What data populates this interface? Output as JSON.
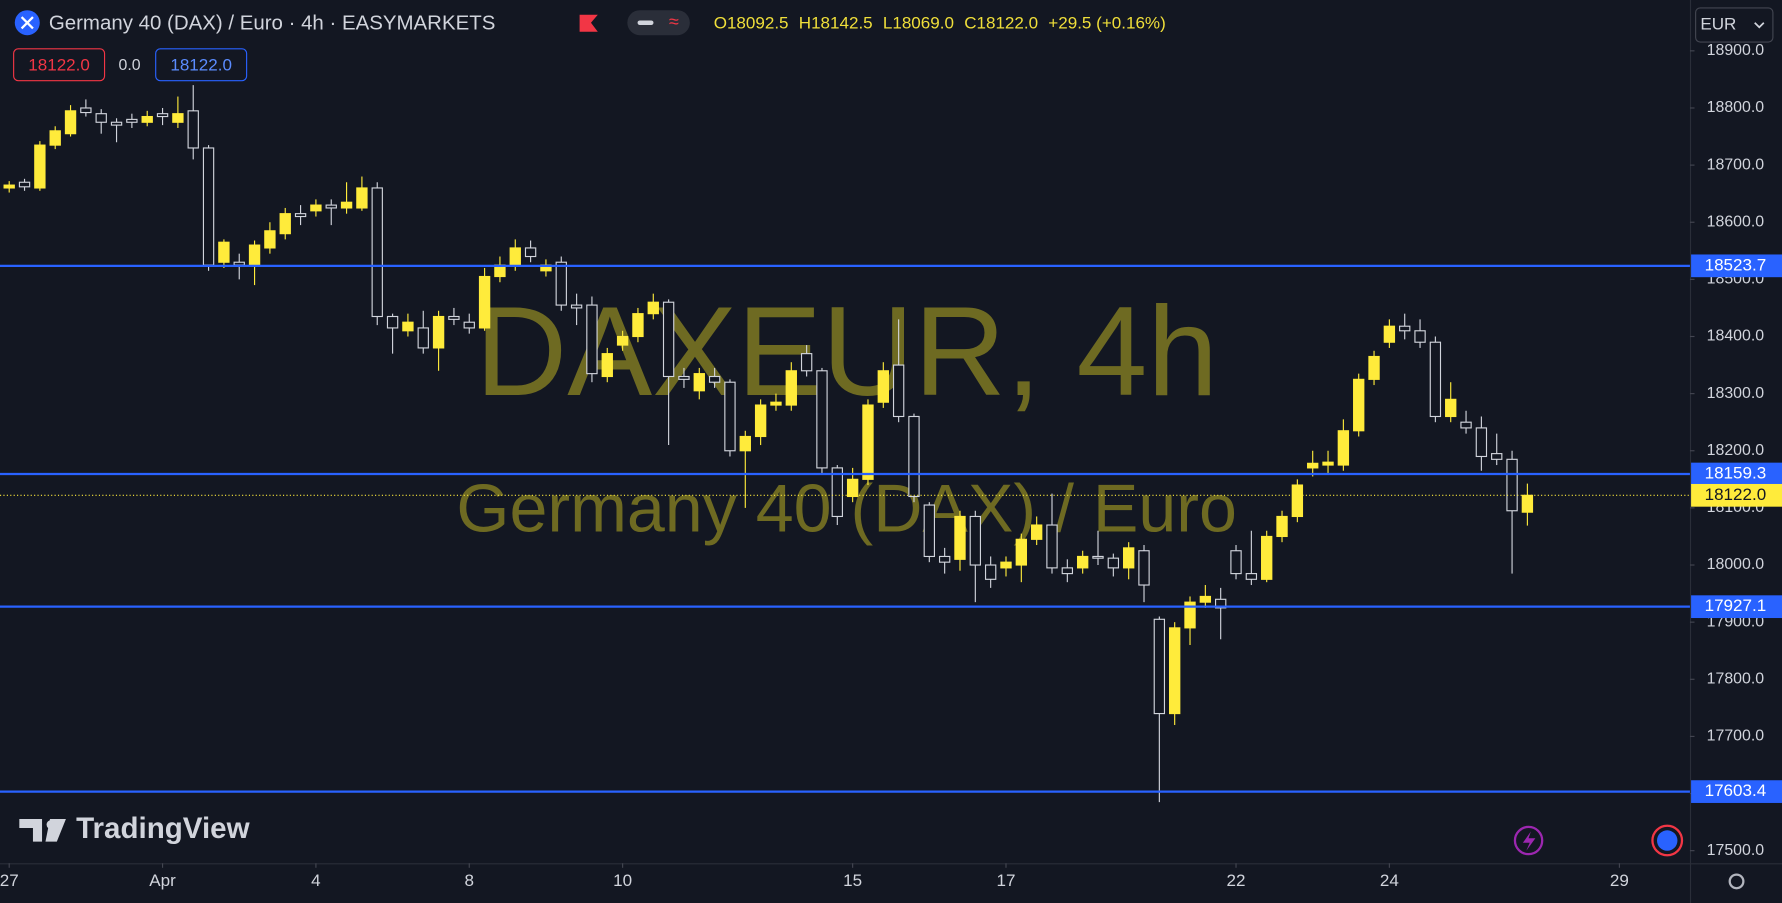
{
  "header": {
    "symbol": "Germany 40 (DAX) / Euro · 4h · EASYMARKETS",
    "ohlc": [
      "O18092.5",
      "H18142.5",
      "L18069.0",
      "C18122.0",
      "+29.5 (+0.16%)"
    ],
    "sell": "18122.0",
    "spread": "0.0",
    "buy": "18122.0",
    "currency": "EUR"
  },
  "watermark": {
    "symbol": "DAXEUR, 4h",
    "description": "Germany 40 (DAX) / Euro"
  },
  "logo": "TradingView",
  "chart_data": {
    "type": "candlestick",
    "open": [
      18660,
      18670,
      18660,
      18735,
      18755,
      18800,
      18790,
      18775,
      18780,
      18775,
      18790,
      18775,
      18795,
      18730,
      18530,
      18530,
      18525,
      18555,
      18580,
      18615,
      18620,
      18630,
      18625,
      18625,
      18660,
      18435,
      18410,
      18415,
      18380,
      18435,
      18425,
      18415,
      18505,
      18525,
      18555,
      18515,
      18530,
      18455,
      18455,
      18330,
      18385,
      18400,
      18440,
      18460,
      18330,
      18305,
      18330,
      18320,
      18200,
      18225,
      18280,
      18280,
      18370,
      18340,
      18170,
      18120,
      18150,
      18285,
      18350,
      18260,
      18105,
      18015,
      18010,
      18085,
      18000,
      17995,
      18000,
      18045,
      18070,
      17995,
      17995,
      18015,
      18012,
      17995,
      18025,
      17905,
      17740,
      17890,
      17935,
      17940,
      18025,
      17985,
      17975,
      18050,
      18085,
      18170,
      18175,
      18175,
      18235,
      18325,
      18390,
      18418,
      18410,
      18390,
      18260,
      18250,
      18240,
      18195,
      18185,
      18092.5
    ],
    "high": [
      18672,
      18676,
      18742,
      18768,
      18805,
      18815,
      18798,
      18782,
      18790,
      18795,
      18800,
      18820,
      18840,
      18735,
      18570,
      18545,
      18568,
      18600,
      18625,
      18630,
      18640,
      18640,
      18670,
      18680,
      18670,
      18440,
      18440,
      18445,
      18445,
      18450,
      18440,
      18520,
      18540,
      18570,
      18568,
      18535,
      18540,
      18475,
      18470,
      18380,
      18410,
      18450,
      18475,
      18465,
      18345,
      18345,
      18345,
      18325,
      18235,
      18290,
      18300,
      18355,
      18385,
      18345,
      18175,
      18170,
      18290,
      18355,
      18430,
      18265,
      18110,
      18030,
      18095,
      18095,
      18015,
      18015,
      18055,
      18085,
      18125,
      18010,
      18025,
      18060,
      18020,
      18040,
      18035,
      17910,
      17900,
      17945,
      17965,
      17960,
      18035,
      18060,
      18060,
      18095,
      18150,
      18200,
      18200,
      18255,
      18335,
      18375,
      18430,
      18440,
      18430,
      18400,
      18320,
      18270,
      18260,
      18230,
      18200,
      18142.5
    ],
    "low": [
      18652,
      18655,
      18655,
      18728,
      18750,
      18785,
      18755,
      18740,
      18765,
      18768,
      18770,
      18765,
      18710,
      18515,
      18520,
      18500,
      18490,
      18545,
      18570,
      18595,
      18610,
      18595,
      18615,
      18620,
      18420,
      18370,
      18400,
      18370,
      18340,
      18420,
      18405,
      18410,
      18495,
      18515,
      18530,
      18505,
      18445,
      18420,
      18320,
      18320,
      18375,
      18390,
      18430,
      18210,
      18310,
      18290,
      18310,
      18190,
      18100,
      18210,
      18270,
      18270,
      18330,
      18160,
      18070,
      18110,
      18140,
      18275,
      18250,
      18110,
      18005,
      17985,
      17990,
      17935,
      17960,
      17980,
      17970,
      18035,
      17985,
      17970,
      17985,
      18000,
      17980,
      17975,
      17935,
      17585,
      17720,
      17860,
      17925,
      17870,
      17975,
      17965,
      17970,
      18040,
      18075,
      18155,
      18160,
      18165,
      18225,
      18315,
      18380,
      18395,
      18380,
      18250,
      18250,
      18230,
      18165,
      18175,
      17985,
      18069
    ],
    "close": [
      18665,
      18662,
      18735,
      18760,
      18795,
      18792,
      18775,
      18770,
      18775,
      18785,
      18785,
      18790,
      18730,
      18525,
      18565,
      18525,
      18560,
      18585,
      18615,
      18610,
      18630,
      18625,
      18635,
      18660,
      18435,
      18415,
      18425,
      18380,
      18435,
      18430,
      18415,
      18505,
      18525,
      18555,
      18540,
      18525,
      18455,
      18450,
      18335,
      18370,
      18400,
      18440,
      18460,
      18330,
      18325,
      18335,
      18320,
      18200,
      18225,
      18280,
      18285,
      18340,
      18340,
      18170,
      18085,
      18150,
      18280,
      18340,
      18260,
      18120,
      18015,
      18005,
      18085,
      18000,
      17975,
      18005,
      18045,
      18070,
      17995,
      17985,
      18015,
      18012,
      17995,
      18030,
      17965,
      17740,
      17890,
      17935,
      17945,
      17925,
      17985,
      17975,
      18050,
      18085,
      18140,
      18178,
      18180,
      18235,
      18325,
      18365,
      18418,
      18410,
      18390,
      18260,
      18290,
      18240,
      18190,
      18185,
      18095,
      18122
    ],
    "up_color": "#ffeb3b",
    "down_color": "#d1d4dc",
    "xlim": [
      -0.6,
      109.6
    ],
    "xticks": [
      {
        "value": 0,
        "label": "27"
      },
      {
        "value": 10,
        "label": "Apr"
      },
      {
        "value": 20,
        "label": "4"
      },
      {
        "value": 30,
        "label": "8"
      },
      {
        "value": 40,
        "label": "10"
      },
      {
        "value": 55,
        "label": "15"
      },
      {
        "value": 65,
        "label": "17"
      },
      {
        "value": 80,
        "label": "22"
      },
      {
        "value": 90,
        "label": "24"
      },
      {
        "value": 105,
        "label": "29"
      }
    ],
    "ylim": [
      17478,
      18989
    ],
    "yticks": [
      {
        "value": 17500,
        "label": "17500.0"
      },
      {
        "value": 17600,
        "label": "17600.0"
      },
      {
        "value": 17700,
        "label": "17700.0"
      },
      {
        "value": 17800,
        "label": "17800.0"
      },
      {
        "value": 17900,
        "label": "17900.0"
      },
      {
        "value": 18000,
        "label": "18000.0"
      },
      {
        "value": 18100,
        "label": "18100.0"
      },
      {
        "value": 18200,
        "label": "18200.0"
      },
      {
        "value": 18300,
        "label": "18300.0"
      },
      {
        "value": 18400,
        "label": "18400.0"
      },
      {
        "value": 18500,
        "label": "18500.0"
      },
      {
        "value": 18600,
        "label": "18600.0"
      },
      {
        "value": 18700,
        "label": "18700.0"
      },
      {
        "value": 18800,
        "label": "18800.0"
      },
      {
        "value": 18900,
        "label": "18900.0"
      }
    ],
    "levels": [
      18523.7,
      18159.3,
      17927.1,
      17603.4
    ],
    "level_color": "#2962ff",
    "last_price": {
      "value": 18122,
      "label": "18122.0"
    },
    "last_price_color": "#ffeb3b",
    "grid": false
  }
}
